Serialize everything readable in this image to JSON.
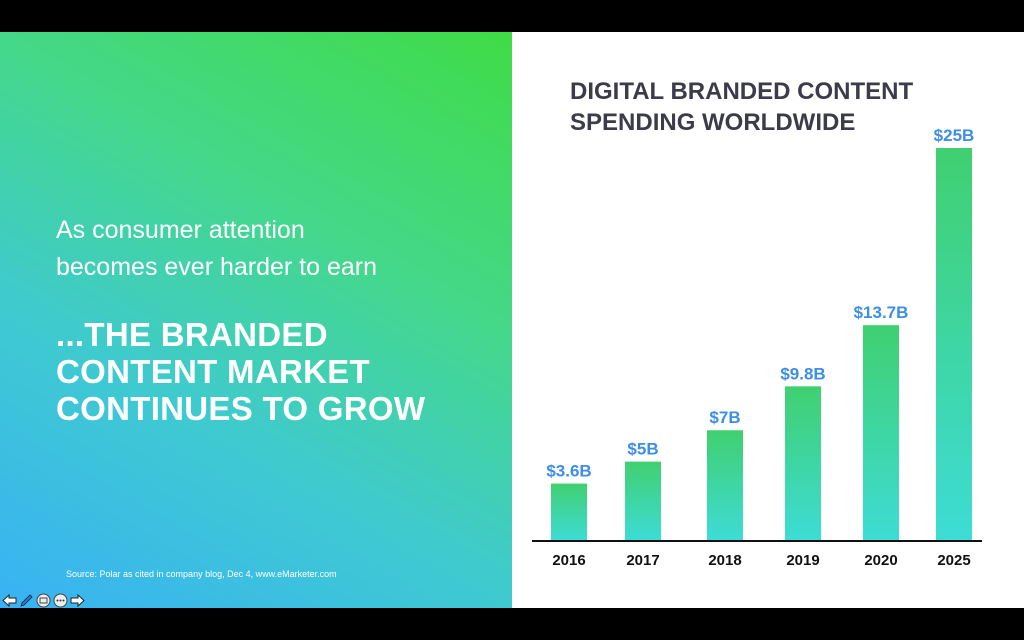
{
  "slide": {
    "subtitle_lines": [
      "As consumer attention",
      "becomes ever harder to earn"
    ],
    "headline_lines": [
      "...THE BRANDED",
      "CONTENT MARKET",
      "CONTINUES TO GROW"
    ],
    "source": "Source: Polar as cited in company blog, Dec 4, www.eMarketer.com"
  },
  "colors": {
    "bar_top": "#40d070",
    "bar_bottom": "#3ddcd6",
    "value_label": "#3d8ee6",
    "title_text": "#3b3b4a",
    "axis": "#111111"
  },
  "nav": {
    "icons": [
      "arrow-left-icon",
      "pen-icon",
      "slides-menu-icon",
      "more-options-icon",
      "arrow-right-icon"
    ]
  },
  "chart_data": {
    "type": "bar",
    "title_lines": [
      "DIGITAL BRANDED CONTENT",
      "SPENDING WORLDWIDE"
    ],
    "categories": [
      "2016",
      "2017",
      "2018",
      "2019",
      "2020",
      "2025"
    ],
    "values": [
      3.6,
      5,
      7,
      9.8,
      13.7,
      25
    ],
    "value_labels": [
      "$3.6B",
      "$5B",
      "$7B",
      "$9.8B",
      "$13.7B",
      "$25B"
    ],
    "unit": "billion USD",
    "ylim": [
      0,
      25
    ],
    "grid": false,
    "legend": "none"
  }
}
